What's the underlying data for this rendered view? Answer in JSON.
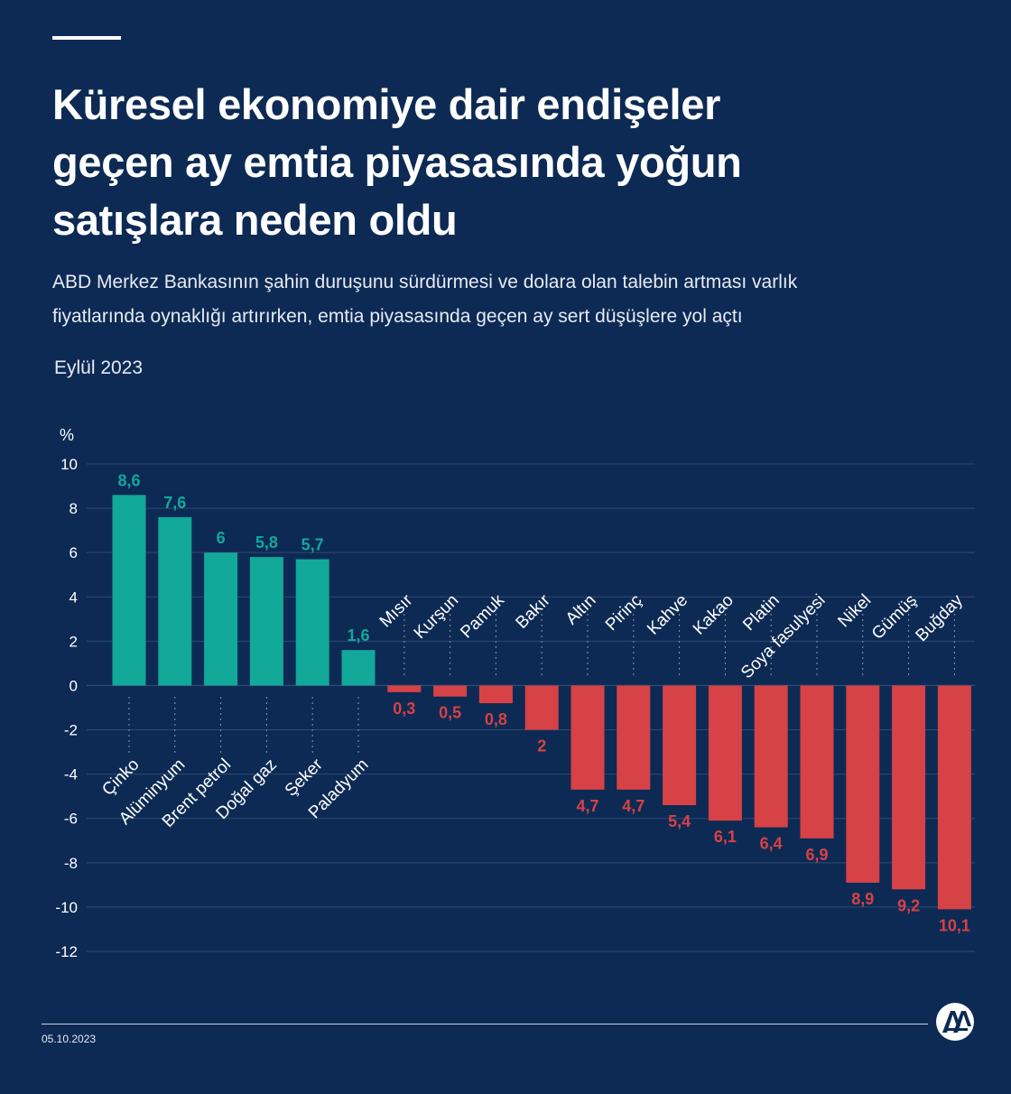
{
  "header": {
    "title_lines": [
      "Küresel ekonomiye dair endişeler",
      "geçen ay emtia piyasasında yoğun",
      "satışlara neden oldu"
    ],
    "subtitle_lines": [
      "ABD Merkez Bankasının şahin duruşunu sürdürmesi ve dolara olan talebin artması varlık",
      "fiyatlarında oynaklığı artırırken, emtia piyasasında geçen ay sert düşüşlere yol açtı"
    ],
    "period": "Eylül 2023"
  },
  "footer": {
    "date": "05.10.2023",
    "logo_icon": "aa-logo-icon"
  },
  "colors": {
    "background": "#0d2a54",
    "positive": "#12a89a",
    "negative": "#d64246",
    "grid": "#2f4a72"
  },
  "chart_data": {
    "type": "bar",
    "ylabel": "%",
    "ylim": [
      -12,
      10
    ],
    "yticks": [
      10,
      8,
      6,
      4,
      2,
      0,
      -2,
      -4,
      -6,
      -8,
      -10,
      -12
    ],
    "grid": true,
    "categories": [
      "Çinko",
      "Alüminyum",
      "Brent petrol",
      "Doğal gaz",
      "Şeker",
      "Paladyum",
      "Mısır",
      "Kurşun",
      "Pamuk",
      "Bakır",
      "Altın",
      "Pirinç",
      "Kahve",
      "Kakao",
      "Platin",
      "Soya fasulyesi",
      "Nikel",
      "Gümüş",
      "Buğday"
    ],
    "values": [
      8.6,
      7.6,
      6,
      5.8,
      5.7,
      1.6,
      -0.3,
      -0.5,
      -0.8,
      -2,
      -4.7,
      -4.7,
      -5.4,
      -6.1,
      -6.4,
      -6.9,
      -8.9,
      -9.2,
      -10.1
    ],
    "data_labels": [
      "8,6",
      "7,6",
      "6",
      "5,8",
      "5,7",
      "1,6",
      "0,3",
      "0,5",
      "0,8",
      "2",
      "4,7",
      "4,7",
      "5,4",
      "6,1",
      "6,4",
      "6,9",
      "8,9",
      "9,2",
      "10,1"
    ]
  }
}
